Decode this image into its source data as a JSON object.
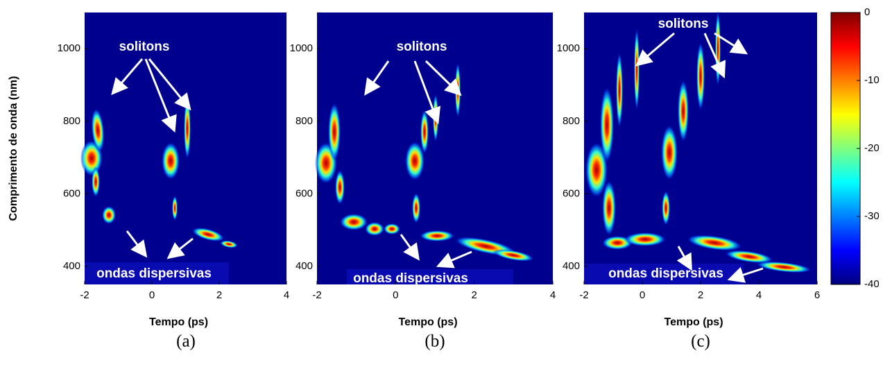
{
  "chart_data": [
    {
      "type": "heatmap",
      "xlabel": "Tempo (ps)",
      "ylabel": "Comprimento de onda (nm)",
      "xlim": [
        -2,
        4
      ],
      "xticks": [
        -2,
        0,
        2,
        4
      ],
      "ylim": [
        350,
        1100
      ],
      "yticks": [
        400,
        600,
        800,
        1000
      ],
      "annotations": [
        "solitons",
        "ondas dispersivas"
      ],
      "caption": "(a)"
    },
    {
      "type": "heatmap",
      "xlabel": "Tempo (ps)",
      "xlim": [
        -2,
        4
      ],
      "xticks": [
        -2,
        0,
        2,
        4
      ],
      "ylim": [
        350,
        1100
      ],
      "yticks": [
        400,
        600,
        800,
        1000
      ],
      "annotations": [
        "solitons",
        "ondas dispersivas"
      ],
      "caption": "(b)"
    },
    {
      "type": "heatmap",
      "xlabel": "Tempo (ps)",
      "xlim": [
        -2,
        6
      ],
      "xticks": [
        -2,
        0,
        2,
        4,
        6
      ],
      "ylim": [
        350,
        1100
      ],
      "yticks": [
        400,
        600,
        800,
        1000
      ],
      "annotations": [
        "solitons",
        "ondas dispersivas"
      ],
      "caption": "(c)",
      "colorbar": {
        "lim": [
          -40,
          0
        ],
        "ticks": [
          0,
          -10,
          -20,
          -30,
          -40
        ]
      }
    }
  ]
}
